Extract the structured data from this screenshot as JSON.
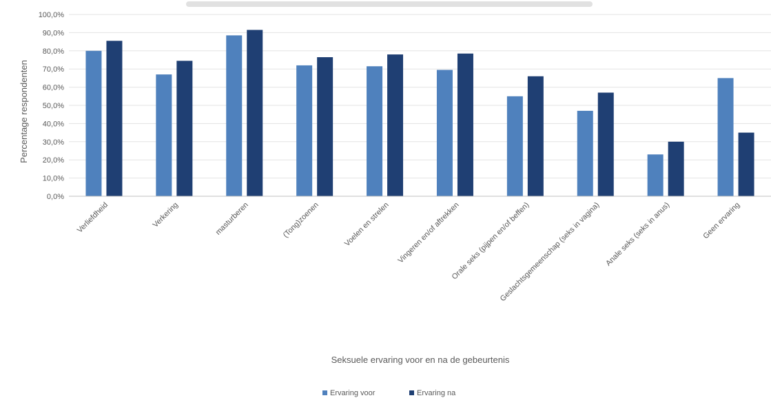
{
  "chart_data": {
    "type": "bar",
    "title": "",
    "xlabel": "Seksuele ervaring voor en na de gebeurtenis",
    "ylabel": "Percentage respondenten",
    "ylim": [
      0,
      100
    ],
    "yticks": [
      "0,0%",
      "10,0%",
      "20,0%",
      "30,0%",
      "40,0%",
      "50,0%",
      "60,0%",
      "70,0%",
      "80,0%",
      "90,0%",
      "100,0%"
    ],
    "grid": true,
    "legend_position": "bottom",
    "categories": [
      "Verliefdheid",
      "Verkering",
      "masturberen",
      "(Tong)zoenen",
      "Voelen en strelen",
      "Vingeren en/of aftrekken",
      "Orale seks (pijpen en/of beffen)",
      "Geslachtsgemeenschap (seks in vagina)",
      "Anale seks (seks in anus)",
      "Geen ervaring"
    ],
    "series": [
      {
        "name": "Ervaring voor",
        "color": "#4f81bd",
        "values": [
          80,
          67,
          88.5,
          72,
          71.5,
          69.5,
          55,
          47,
          23,
          65
        ]
      },
      {
        "name": "Ervaring na",
        "color": "#1f3f73",
        "values": [
          85.5,
          74.5,
          91.5,
          76.5,
          78,
          78.5,
          66,
          57,
          30,
          35
        ]
      }
    ]
  }
}
